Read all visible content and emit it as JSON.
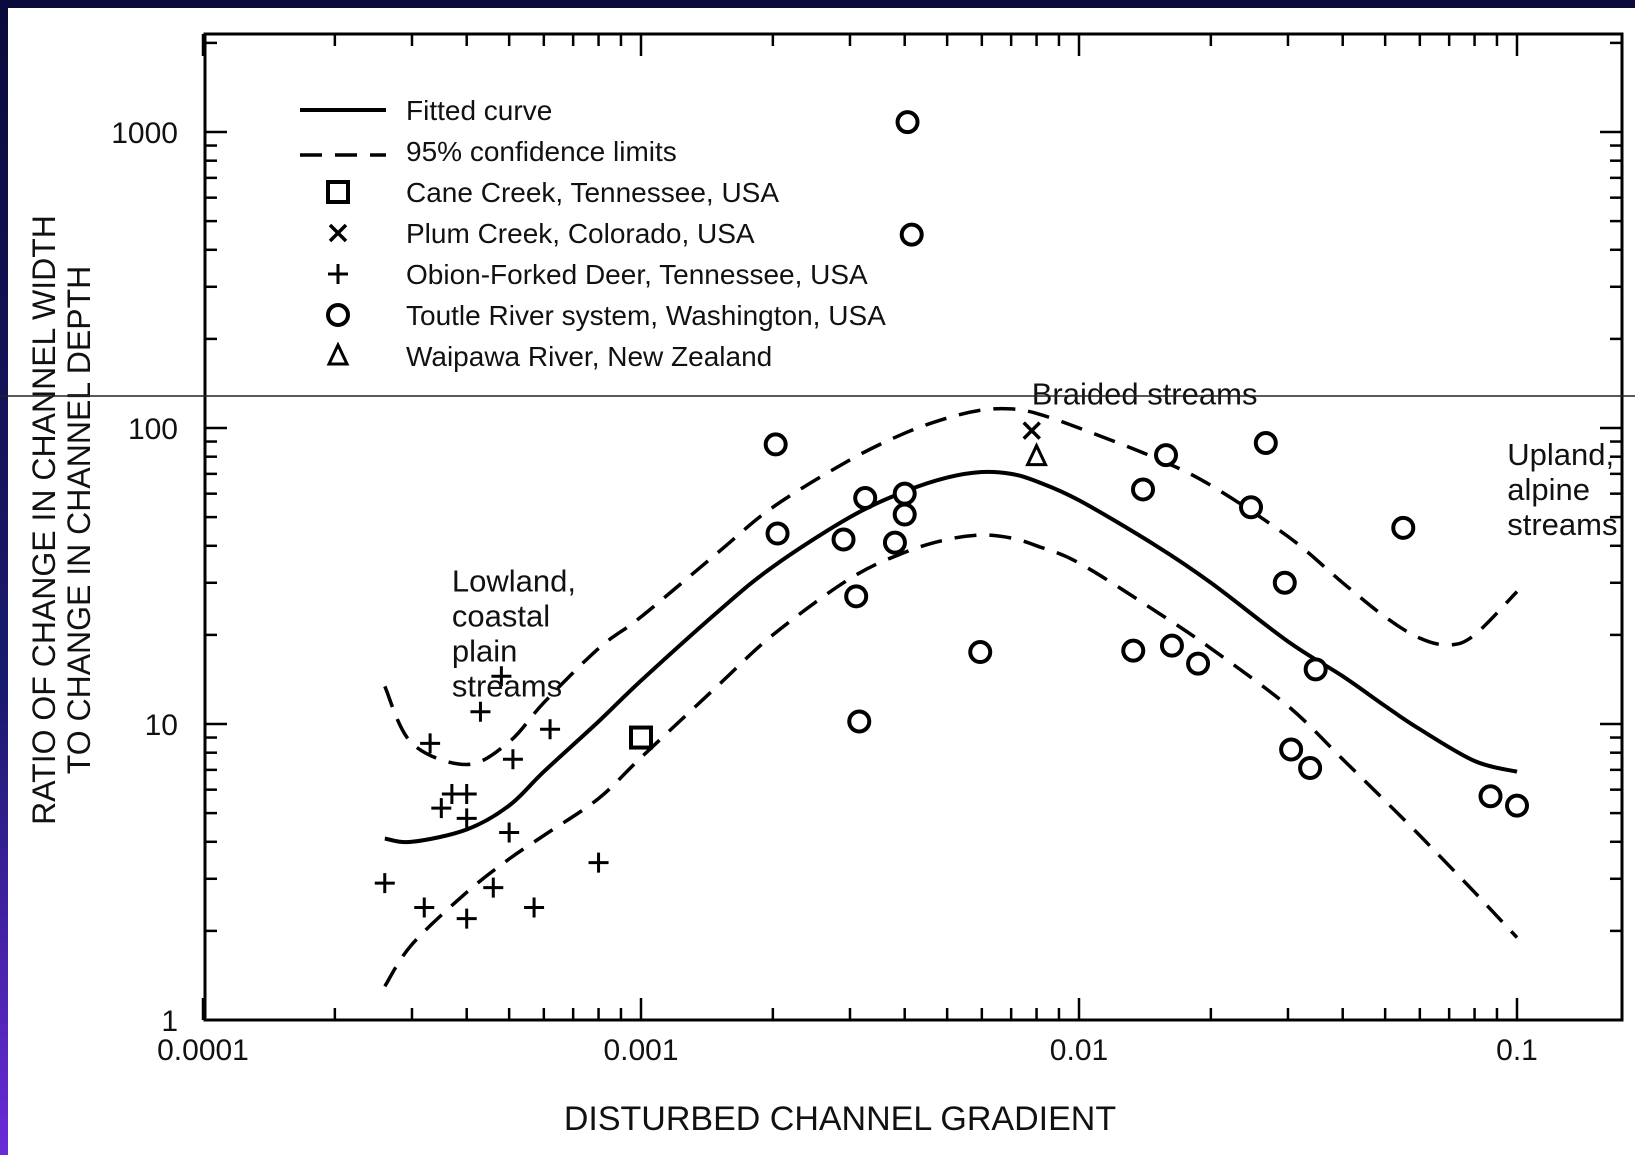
{
  "chart_data": {
    "type": "scatter",
    "xlabel": "DISTURBED CHANNEL GRADIENT",
    "ylabel_lines": [
      "RATIO OF CHANGE IN CHANNEL WIDTH",
      "TO CHANGE IN CHANNEL DEPTH"
    ],
    "x_scale": "log",
    "y_scale": "log",
    "xlim": [
      0.0001,
      0.2
    ],
    "ylim": [
      1,
      2000
    ],
    "x_tick_labels": [
      {
        "value": 0.0001,
        "label": "0.0001"
      },
      {
        "value": 0.001,
        "label": "0.001"
      },
      {
        "value": 0.01,
        "label": "0.01"
      },
      {
        "value": 0.1,
        "label": "0.1"
      }
    ],
    "y_tick_labels": [
      {
        "value": 1,
        "label": "1"
      },
      {
        "value": 10,
        "label": "10"
      },
      {
        "value": 100,
        "label": "100"
      },
      {
        "value": 1000,
        "label": "1000"
      }
    ],
    "grid": false,
    "legend_position": "top-left",
    "legend": [
      {
        "marker": "solid-line",
        "label": "Fitted curve"
      },
      {
        "marker": "dashed-line",
        "label": "95% confidence limits"
      },
      {
        "marker": "square",
        "label": "Cane Creek, Tennessee, USA"
      },
      {
        "marker": "x",
        "label": "Plum Creek, Colorado, USA"
      },
      {
        "marker": "plus",
        "label": "Obion-Forked Deer, Tennessee, USA"
      },
      {
        "marker": "circle",
        "label": "Toutle River system, Washington, USA"
      },
      {
        "marker": "triangle",
        "label": "Waipawa River, New Zealand"
      }
    ],
    "annotations": [
      {
        "text": [
          "Lowland,",
          "coastal",
          "plain",
          "streams"
        ],
        "x": 0.00037,
        "y": 28
      },
      {
        "text": [
          "Braided streams"
        ],
        "x": 0.0078,
        "y": 120
      },
      {
        "text": [
          "Upland,",
          "alpine",
          "streams"
        ],
        "x": 0.095,
        "y": 75
      }
    ],
    "series": [
      {
        "name": "Cane Creek, Tennessee, USA",
        "marker": "square",
        "points": [
          [
            0.001,
            9
          ]
        ]
      },
      {
        "name": "Plum Creek, Colorado, USA",
        "marker": "x",
        "points": [
          [
            0.0078,
            98
          ]
        ]
      },
      {
        "name": "Obion-Forked Deer, Tennessee, USA",
        "marker": "plus",
        "points": [
          [
            0.00026,
            2.9
          ],
          [
            0.00032,
            2.4
          ],
          [
            0.00033,
            8.6
          ],
          [
            0.00035,
            5.2
          ],
          [
            0.00037,
            5.8
          ],
          [
            0.0004,
            5.8
          ],
          [
            0.0004,
            4.8
          ],
          [
            0.0004,
            2.2
          ],
          [
            0.00043,
            11
          ],
          [
            0.00046,
            2.8
          ],
          [
            0.00048,
            14.5
          ],
          [
            0.0005,
            4.3
          ],
          [
            0.00051,
            7.6
          ],
          [
            0.00057,
            2.4
          ],
          [
            0.00062,
            9.6
          ],
          [
            0.0008,
            3.4
          ]
        ]
      },
      {
        "name": "Toutle River system, Washington, USA",
        "marker": "circle",
        "points": [
          [
            0.00406,
            1080
          ],
          [
            0.00415,
            450
          ],
          [
            0.00203,
            88
          ],
          [
            0.00205,
            44
          ],
          [
            0.0029,
            42
          ],
          [
            0.00315,
            10.2
          ],
          [
            0.0031,
            27
          ],
          [
            0.00325,
            58
          ],
          [
            0.0038,
            41
          ],
          [
            0.004,
            60
          ],
          [
            0.004,
            51
          ],
          [
            0.00595,
            17.5
          ],
          [
            0.0133,
            17.7
          ],
          [
            0.014,
            62
          ],
          [
            0.0158,
            81
          ],
          [
            0.0163,
            18.4
          ],
          [
            0.0187,
            16
          ],
          [
            0.0247,
            54
          ],
          [
            0.0267,
            89
          ],
          [
            0.0295,
            30
          ],
          [
            0.0305,
            8.2
          ],
          [
            0.0337,
            7.1
          ],
          [
            0.0347,
            15.3
          ],
          [
            0.055,
            46
          ],
          [
            0.087,
            5.7
          ],
          [
            0.1,
            5.3
          ]
        ]
      },
      {
        "name": "Waipawa River, New Zealand",
        "marker": "triangle",
        "points": [
          [
            0.008,
            80
          ]
        ]
      }
    ],
    "fitted_curve": [
      [
        0.00026,
        4.1
      ],
      [
        0.0003,
        4.0
      ],
      [
        0.0004,
        4.4
      ],
      [
        0.0005,
        5.3
      ],
      [
        0.0006,
        6.9
      ],
      [
        0.0008,
        10.2
      ],
      [
        0.001,
        14
      ],
      [
        0.0015,
        24
      ],
      [
        0.002,
        34
      ],
      [
        0.003,
        50
      ],
      [
        0.004,
        61
      ],
      [
        0.005,
        68
      ],
      [
        0.006,
        71
      ],
      [
        0.007,
        70
      ],
      [
        0.008,
        66
      ],
      [
        0.01,
        57
      ],
      [
        0.015,
        40
      ],
      [
        0.02,
        30
      ],
      [
        0.03,
        19
      ],
      [
        0.04,
        14.5
      ],
      [
        0.05,
        11.5
      ],
      [
        0.06,
        9.6
      ],
      [
        0.08,
        7.5
      ],
      [
        0.1,
        6.9
      ]
    ],
    "upper_confidence_limit": [
      [
        0.00026,
        13.4
      ],
      [
        0.0003,
        8.6
      ],
      [
        0.0004,
        7.3
      ],
      [
        0.0005,
        8.7
      ],
      [
        0.0006,
        11.8
      ],
      [
        0.0008,
        18
      ],
      [
        0.001,
        23
      ],
      [
        0.0015,
        38
      ],
      [
        0.002,
        54
      ],
      [
        0.003,
        78
      ],
      [
        0.004,
        96
      ],
      [
        0.005,
        108
      ],
      [
        0.006,
        115
      ],
      [
        0.007,
        116
      ],
      [
        0.008,
        112
      ],
      [
        0.01,
        100
      ],
      [
        0.015,
        79
      ],
      [
        0.02,
        64
      ],
      [
        0.03,
        43
      ],
      [
        0.04,
        30
      ],
      [
        0.05,
        23
      ],
      [
        0.06,
        19.5
      ],
      [
        0.07,
        18.5
      ],
      [
        0.08,
        20
      ],
      [
        0.1,
        28
      ]
    ],
    "lower_confidence_limit": [
      [
        0.00026,
        1.3
      ],
      [
        0.0003,
        1.8
      ],
      [
        0.0004,
        2.7
      ],
      [
        0.0005,
        3.5
      ],
      [
        0.0006,
        4.2
      ],
      [
        0.0008,
        5.6
      ],
      [
        0.001,
        7.7
      ],
      [
        0.0015,
        13.5
      ],
      [
        0.002,
        20
      ],
      [
        0.003,
        31
      ],
      [
        0.004,
        38
      ],
      [
        0.005,
        42
      ],
      [
        0.006,
        43.5
      ],
      [
        0.007,
        42.5
      ],
      [
        0.008,
        40
      ],
      [
        0.01,
        35
      ],
      [
        0.015,
        24
      ],
      [
        0.02,
        18
      ],
      [
        0.03,
        11.5
      ],
      [
        0.04,
        7.6
      ],
      [
        0.05,
        5.5
      ],
      [
        0.06,
        4.2
      ],
      [
        0.08,
        2.7
      ],
      [
        0.1,
        1.9
      ]
    ]
  }
}
